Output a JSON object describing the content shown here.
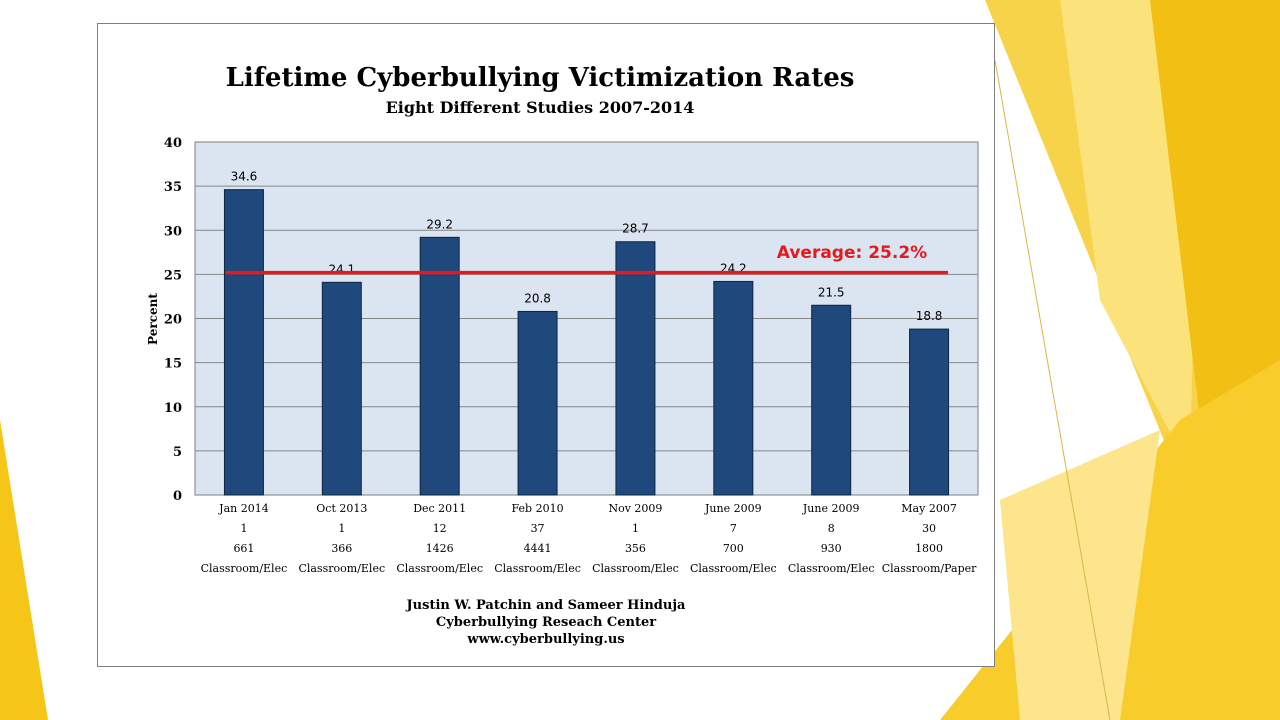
{
  "chart_data": {
    "type": "bar",
    "title": "Lifetime Cyberbullying Victimization Rates",
    "subtitle": "Eight Different Studies 2007-2014",
    "ylabel": "Percent",
    "ylim": [
      0,
      40
    ],
    "yticks": [
      0,
      5,
      10,
      15,
      20,
      25,
      30,
      35,
      40
    ],
    "grid": true,
    "categories": [
      "Jan 2014",
      "Oct 2013",
      "Dec 2011",
      "Feb 2010",
      "Nov 2009",
      "June 2009",
      "June 2009",
      "May 2007"
    ],
    "category_rows": [
      [
        "1",
        "1",
        "12",
        "37",
        "1",
        "7",
        "8",
        "30"
      ],
      [
        "661",
        "366",
        "1426",
        "4441",
        "356",
        "700",
        "930",
        "1800"
      ],
      [
        "Classroom/Elec",
        "Classroom/Elec",
        "Classroom/Elec",
        "Classroom/Elec",
        "Classroom/Elec",
        "Classroom/Elec",
        "Classroom/Elec",
        "Classroom/Paper"
      ]
    ],
    "values": [
      34.6,
      24.1,
      29.2,
      20.8,
      28.7,
      24.2,
      21.5,
      18.8
    ],
    "average": {
      "label": "Average: 25.2%",
      "value": 25.2
    },
    "colors": {
      "bar": "#1f497d",
      "plot_bg": "#dbe5f1",
      "average_line": "#e41a1c",
      "gridline": "#868686"
    },
    "credits": [
      "Justin W. Patchin and Sameer Hinduja",
      "Cyberbullying  Reseach Center",
      "www.cyberbullying.us"
    ]
  }
}
